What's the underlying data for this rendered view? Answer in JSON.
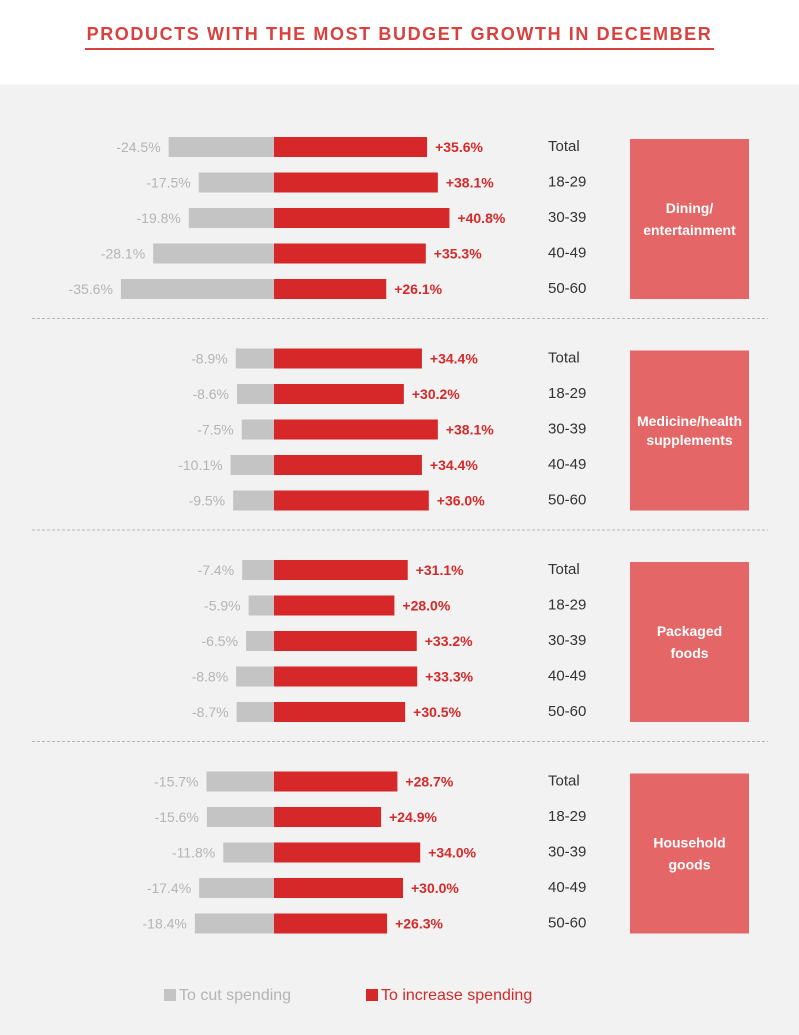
{
  "chart_data": {
    "type": "bar",
    "orientation": "horizontal-diverging",
    "title": "PRODUCTS WITH THE MOST BUDGET GROWTH IN DECEMBER",
    "age_groups": [
      "Total",
      "18-29",
      "30-39",
      "40-49",
      "50-60"
    ],
    "groups": [
      {
        "category": [
          "Dining/",
          "entertainment"
        ],
        "cut": [
          -24.5,
          -17.5,
          -19.8,
          -28.1,
          -35.6
        ],
        "increase": [
          35.6,
          38.1,
          40.8,
          35.3,
          26.1
        ],
        "cut_labels": [
          "-24.5%",
          "-17.5%",
          "-19.8%",
          "-28.1%",
          "-35.6%"
        ],
        "increase_labels": [
          "+35.6%",
          "+38.1%",
          "+40.8%",
          "+35.3%",
          "+26.1%"
        ]
      },
      {
        "category": [
          "Medicine/health",
          "supplements"
        ],
        "cut": [
          -8.9,
          -8.6,
          -7.5,
          -10.1,
          -9.5
        ],
        "increase": [
          34.4,
          30.2,
          38.1,
          34.4,
          36.0
        ],
        "cut_labels": [
          "-8.9%",
          "-8.6%",
          "-7.5%",
          "-10.1%",
          "-9.5%"
        ],
        "increase_labels": [
          "+34.4%",
          "+30.2%",
          "+38.1%",
          "+34.4%",
          "+36.0%"
        ]
      },
      {
        "category": [
          "Packaged",
          "foods"
        ],
        "cut": [
          -7.4,
          -5.9,
          -6.5,
          -8.8,
          -8.7
        ],
        "increase": [
          31.1,
          28.0,
          33.2,
          33.3,
          30.5
        ],
        "cut_labels": [
          "-7.4%",
          "-5.9%",
          "-6.5%",
          "-8.8%",
          "-8.7%"
        ],
        "increase_labels": [
          "+31.1%",
          "+28.0%",
          "+33.2%",
          "+33.3%",
          "+30.5%"
        ]
      },
      {
        "category": [
          "Household",
          "goods"
        ],
        "cut": [
          -15.7,
          -15.6,
          -11.8,
          -17.4,
          -18.4
        ],
        "increase": [
          28.7,
          24.9,
          34.0,
          30.0,
          26.3
        ],
        "cut_labels": [
          "-15.7%",
          "-15.6%",
          "-11.8%",
          "-17.4%",
          "-18.4%"
        ],
        "increase_labels": [
          "+28.7%",
          "+24.9%",
          "+34.0%",
          "+30.0%",
          "+26.3%"
        ]
      }
    ],
    "legend": [
      {
        "name": "To cut spending",
        "color": "#c4c4c4"
      },
      {
        "name": "To increase spending",
        "color": "#d62828"
      }
    ],
    "legend_position": "bottom",
    "grid": false
  },
  "colors": {
    "cut": "#c4c4c4",
    "increase": "#d62828",
    "category_box": "#e46666",
    "title": "#d8413e"
  }
}
